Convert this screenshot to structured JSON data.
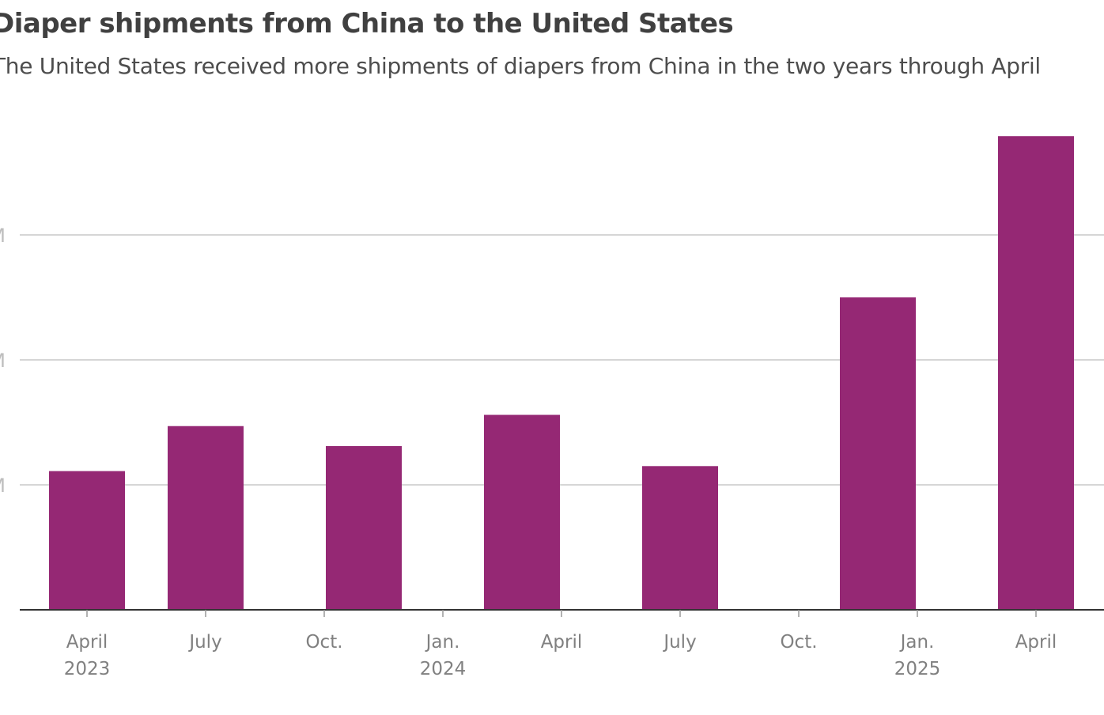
{
  "chart_data": {
    "type": "bar",
    "title": "Diaper shipments from China to the United States",
    "subtitle": "The United States received more shipments of diapers from China in the two years through April",
    "color": "#952874",
    "y_tick_labels": [
      "M",
      "M",
      "M"
    ],
    "y_ticks": [
      1,
      2,
      3
    ],
    "ylim": [
      0,
      3.8
    ],
    "grid": true,
    "x_months_range": [
      0,
      24
    ],
    "x_ticks": [
      {
        "m": 0,
        "label": "April",
        "year": "2023"
      },
      {
        "m": 3,
        "label": "July",
        "year": ""
      },
      {
        "m": 6,
        "label": "Oct.",
        "year": ""
      },
      {
        "m": 9,
        "label": "Jan.",
        "year": "2024"
      },
      {
        "m": 12,
        "label": "April",
        "year": ""
      },
      {
        "m": 15,
        "label": "July",
        "year": ""
      },
      {
        "m": 18,
        "label": "Oct.",
        "year": ""
      },
      {
        "m": 21,
        "label": "Jan.",
        "year": "2025"
      },
      {
        "m": 24,
        "label": "April",
        "year": ""
      }
    ],
    "bars": [
      {
        "m": 0,
        "value": 1.11
      },
      {
        "m": 3,
        "value": 1.47
      },
      {
        "m": 7,
        "value": 1.31
      },
      {
        "m": 11,
        "value": 1.56
      },
      {
        "m": 15,
        "value": 1.15
      },
      {
        "m": 20,
        "value": 2.5
      },
      {
        "m": 24,
        "value": 3.79
      }
    ]
  }
}
